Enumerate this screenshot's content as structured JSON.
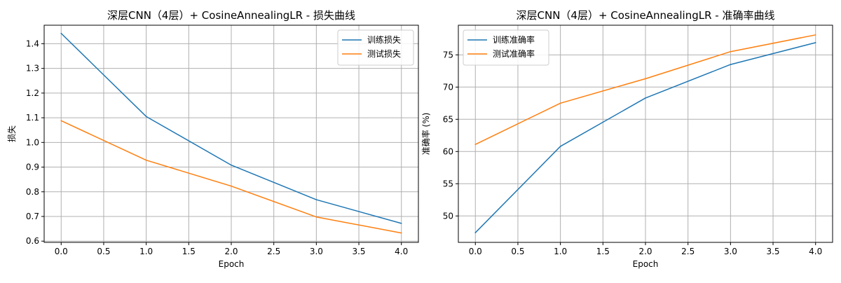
{
  "chart_data": [
    {
      "type": "line",
      "title": "深层CNN（4层）+ CosineAnnealingLR - 损失曲线",
      "xlabel": "Epoch",
      "ylabel": "损失",
      "x": [
        0,
        1,
        2,
        3,
        4
      ],
      "xlim": [
        -0.2,
        4.2
      ],
      "ylim": [
        0.595,
        1.475
      ],
      "xticks": [
        0.0,
        0.5,
        1.0,
        1.5,
        2.0,
        2.5,
        3.0,
        3.5,
        4.0
      ],
      "xtick_labels": [
        "0.0",
        "0.5",
        "1.0",
        "1.5",
        "2.0",
        "2.5",
        "3.0",
        "3.5",
        "4.0"
      ],
      "yticks": [
        0.6,
        0.7,
        0.8,
        0.9,
        1.0,
        1.1,
        1.2,
        1.3,
        1.4
      ],
      "ytick_labels": [
        "0.6",
        "0.7",
        "0.8",
        "0.9",
        "1.0",
        "1.1",
        "1.2",
        "1.3",
        "1.4"
      ],
      "grid": true,
      "legend_position": "top-right",
      "series": [
        {
          "name": "训练损失",
          "color": "#1f77b4",
          "values": [
            1.442,
            1.105,
            0.908,
            0.768,
            0.672
          ]
        },
        {
          "name": "测试损失",
          "color": "#ff7f0e",
          "values": [
            1.088,
            0.928,
            0.823,
            0.698,
            0.633
          ]
        }
      ]
    },
    {
      "type": "line",
      "title": "深层CNN（4层）+ CosineAnnealingLR - 准确率曲线",
      "xlabel": "Epoch",
      "ylabel": "准确率 (%)",
      "x": [
        0,
        1,
        2,
        3,
        4
      ],
      "xlim": [
        -0.2,
        4.2
      ],
      "ylim": [
        45.9,
        79.6
      ],
      "xticks": [
        0.0,
        0.5,
        1.0,
        1.5,
        2.0,
        2.5,
        3.0,
        3.5,
        4.0
      ],
      "xtick_labels": [
        "0.0",
        "0.5",
        "1.0",
        "1.5",
        "2.0",
        "2.5",
        "3.0",
        "3.5",
        "4.0"
      ],
      "yticks": [
        50,
        55,
        60,
        65,
        70,
        75
      ],
      "ytick_labels": [
        "50",
        "55",
        "60",
        "65",
        "70",
        "75"
      ],
      "grid": true,
      "legend_position": "top-left",
      "series": [
        {
          "name": "训练准确率",
          "color": "#1f77b4",
          "values": [
            47.4,
            60.8,
            68.3,
            73.5,
            76.9
          ]
        },
        {
          "name": "测试准确率",
          "color": "#ff7f0e",
          "values": [
            61.1,
            67.5,
            71.3,
            75.5,
            78.1
          ]
        }
      ]
    }
  ]
}
